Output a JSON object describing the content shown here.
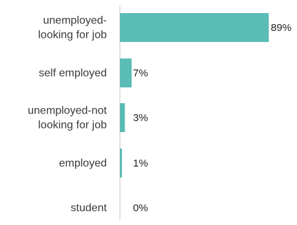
{
  "chart_data": {
    "type": "bar",
    "orientation": "horizontal",
    "categories": [
      [
        "unemployed-",
        "looking for job"
      ],
      [
        "self employed"
      ],
      [
        "unemployed-not",
        "looking for job"
      ],
      [
        "employed"
      ],
      [
        "student"
      ]
    ],
    "values": [
      89,
      7,
      3,
      1,
      0
    ],
    "value_labels": [
      "89%",
      "7%",
      "3%",
      "1%",
      "0%"
    ],
    "xlim": [
      0,
      100
    ],
    "grid": false,
    "legend": "none",
    "colors": {
      "bar": "#5bbcb6",
      "axis": "#d9d9d9",
      "label": "#3a3a3a"
    }
  }
}
